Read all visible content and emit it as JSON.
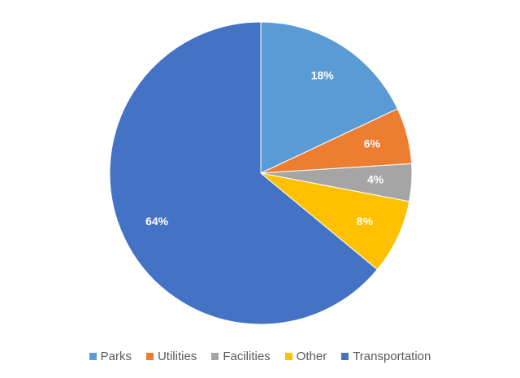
{
  "chart_data": {
    "type": "pie",
    "title": "",
    "legend_position": "bottom",
    "slices": [
      {
        "label": "Parks",
        "value": 18,
        "display": "18%",
        "color": "#5B9BD5"
      },
      {
        "label": "Utilities",
        "value": 6,
        "display": "6%",
        "color": "#ED7D31"
      },
      {
        "label": "Facilities",
        "value": 4,
        "display": "4%",
        "color": "#A5A5A5"
      },
      {
        "label": "Other",
        "value": 8,
        "display": "8%",
        "color": "#FFC000"
      },
      {
        "label": "Transportation",
        "value": 64,
        "display": "64%",
        "color": "#4472C4"
      }
    ]
  }
}
